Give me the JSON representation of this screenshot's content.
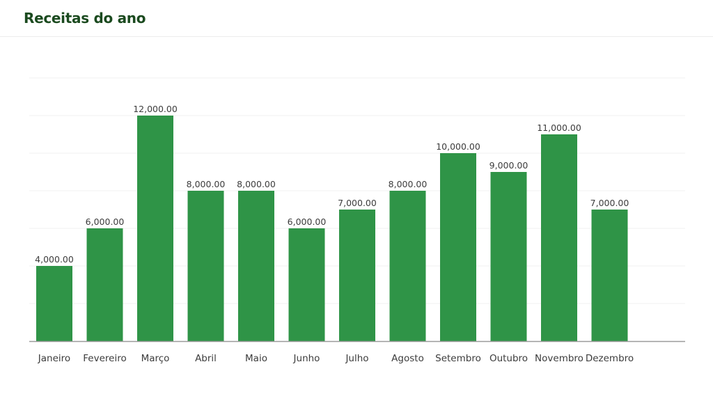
{
  "title": "Receitas do ano",
  "colors": {
    "bar": "#2f9447",
    "title": "#1b4a1f",
    "axis": "#9a9a9a",
    "grid": "#f2f2f2",
    "text": "#3c3c3c"
  },
  "chart_data": {
    "type": "bar",
    "title": "Receitas do ano",
    "xlabel": "",
    "ylabel": "",
    "categories": [
      "Janeiro",
      "Fevereiro",
      "Março",
      "Abril",
      "Maio",
      "Junho",
      "Julho",
      "Agosto",
      "Setembro",
      "Outubro",
      "Novembro",
      "Dezembro"
    ],
    "values": [
      4000,
      6000,
      12000,
      8000,
      8000,
      6000,
      7000,
      8000,
      10000,
      9000,
      11000,
      7000
    ],
    "data_labels": [
      "4,000.00",
      "6,000.00",
      "12,000.00",
      "8,000.00",
      "8,000.00",
      "6,000.00",
      "7,000.00",
      "8,000.00",
      "10,000.00",
      "9,000.00",
      "11,000.00",
      "7,000.00"
    ],
    "ylim": [
      0,
      14000
    ],
    "grid": true,
    "legend": "none"
  }
}
